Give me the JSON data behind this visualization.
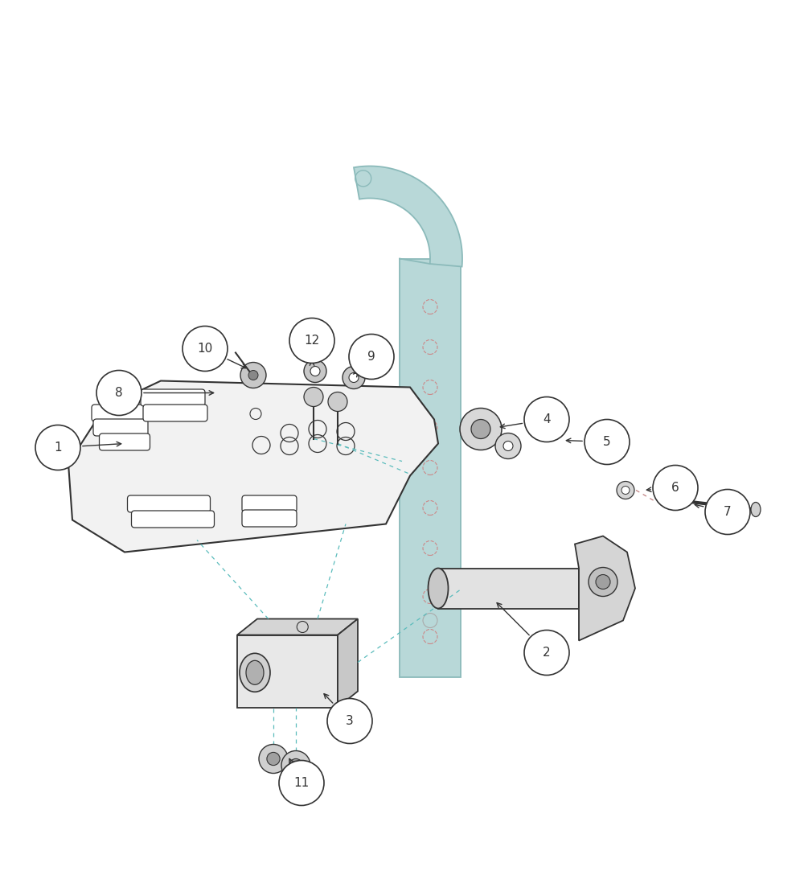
{
  "bg_color": "#ffffff",
  "line_color": "#333333",
  "tube_color": "#b8d8d8",
  "tube_edge": "#8bbaba",
  "plate_face": "#f2f2f2",
  "plate_edge": "#333333",
  "bracket_face": "#e0e0e0",
  "bracket_dark": "#c8c8c8",
  "part_color": "#d8d8d8",
  "hole_color": "#cc9999",
  "cyan_dash": "#5bbcbc",
  "label_font": 11,
  "label_r": 0.028,
  "labels_info": [
    [
      1,
      0.072,
      0.485,
      0.155,
      0.49
    ],
    [
      2,
      0.68,
      0.23,
      0.615,
      0.295
    ],
    [
      3,
      0.435,
      0.145,
      0.4,
      0.182
    ],
    [
      4,
      0.68,
      0.52,
      0.618,
      0.51
    ],
    [
      5,
      0.755,
      0.492,
      0.7,
      0.494
    ],
    [
      6,
      0.84,
      0.435,
      0.8,
      0.432
    ],
    [
      7,
      0.905,
      0.405,
      0.86,
      0.415
    ],
    [
      8,
      0.148,
      0.553,
      0.27,
      0.553
    ],
    [
      9,
      0.462,
      0.598,
      0.448,
      0.582
    ],
    [
      10,
      0.255,
      0.608,
      0.31,
      0.582
    ],
    [
      11,
      0.375,
      0.068,
      0.358,
      0.102
    ],
    [
      12,
      0.388,
      0.618,
      0.388,
      0.597
    ]
  ]
}
